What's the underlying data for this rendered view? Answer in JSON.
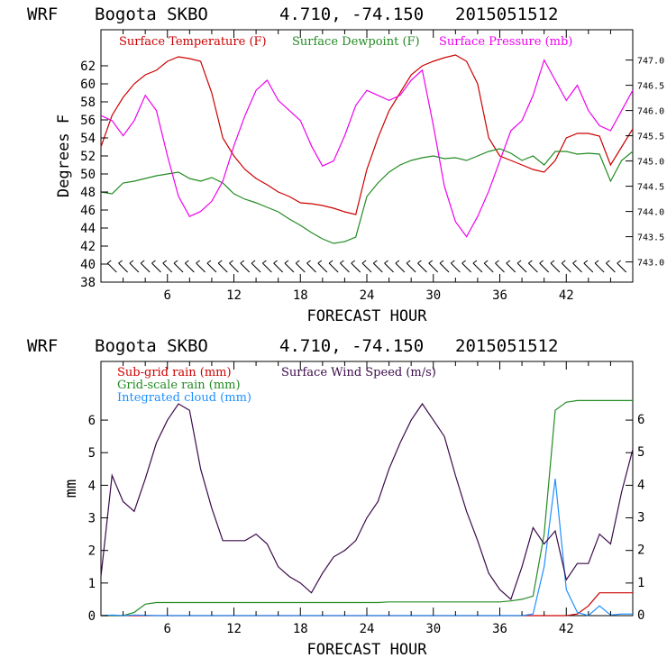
{
  "chart_data": [
    {
      "type": "line",
      "header": {
        "model": "WRF",
        "station": "Bogota SKBO",
        "coords": "4.710, -74.150",
        "init": "2015051512"
      },
      "xlabel": "FORECAST HOUR",
      "ylabel": "Degrees F",
      "xlim": [
        0,
        48
      ],
      "ylim": [
        38,
        66
      ],
      "y2lim": [
        742.6,
        747.6
      ],
      "xticks": [
        "6",
        "12",
        "18",
        "24",
        "30",
        "36",
        "42"
      ],
      "yticks": [
        "38",
        "40",
        "42",
        "44",
        "46",
        "48",
        "50",
        "52",
        "54",
        "56",
        "58",
        "60",
        "62"
      ],
      "y2ticks": [
        "743.0",
        "743.5",
        "744.0",
        "744.5",
        "745.0",
        "745.5",
        "746.0",
        "746.5",
        "747.0"
      ],
      "wind_barbs": "row of wind barbs along y=39.5",
      "series": [
        {
          "name": "Surface Temperature (F)",
          "color": "#cc0000",
          "axis": "left",
          "x": [
            0,
            1,
            2,
            3,
            4,
            5,
            6,
            7,
            8,
            9,
            10,
            11,
            12,
            13,
            14,
            15,
            16,
            17,
            18,
            19,
            20,
            21,
            22,
            23,
            24,
            25,
            26,
            27,
            28,
            29,
            30,
            31,
            32,
            33,
            34,
            35,
            36,
            37,
            38,
            39,
            40,
            41,
            42,
            43,
            44,
            45,
            46,
            47,
            48
          ],
          "values": [
            53,
            56.5,
            58.5,
            60,
            61,
            61.5,
            62.5,
            63,
            62.8,
            62.5,
            59,
            54,
            52,
            50.5,
            49.5,
            48.8,
            48,
            47.5,
            46.8,
            46.7,
            46.5,
            46.2,
            45.8,
            45.5,
            50.5,
            54,
            57,
            59,
            61,
            62,
            62.5,
            62.9,
            63.2,
            62.5,
            60,
            54,
            52,
            51.5,
            51,
            50.5,
            50.2,
            51.5,
            54,
            54.5,
            54.5,
            54.2,
            51,
            53,
            55
          ]
        },
        {
          "name": "Surface Dewpoint (F)",
          "color": "#228b22",
          "axis": "left",
          "x": [
            0,
            1,
            2,
            3,
            4,
            5,
            6,
            7,
            8,
            9,
            10,
            11,
            12,
            13,
            14,
            15,
            16,
            17,
            18,
            19,
            20,
            21,
            22,
            23,
            24,
            25,
            26,
            27,
            28,
            29,
            30,
            31,
            32,
            33,
            34,
            35,
            36,
            37,
            38,
            39,
            40,
            41,
            42,
            43,
            44,
            45,
            46,
            47,
            48
          ],
          "values": [
            48,
            47.8,
            49,
            49.2,
            49.5,
            49.8,
            50,
            50.2,
            49.5,
            49.2,
            49.6,
            49,
            47.8,
            47.2,
            46.8,
            46.3,
            45.8,
            45,
            44.3,
            43.5,
            42.8,
            42.3,
            42.5,
            43,
            47.5,
            49,
            50.2,
            51,
            51.5,
            51.8,
            52,
            51.7,
            51.8,
            51.5,
            52,
            52.5,
            52.8,
            52.3,
            51.5,
            52,
            51,
            52.5,
            52.5,
            52.2,
            52.3,
            52.2,
            49.2,
            51.5,
            52.5
          ]
        },
        {
          "name": "Surface Pressure (mb)",
          "color": "#ee00ee",
          "axis": "right",
          "x": [
            0,
            1,
            2,
            3,
            4,
            5,
            6,
            7,
            8,
            9,
            10,
            11,
            12,
            13,
            14,
            15,
            16,
            17,
            18,
            19,
            20,
            21,
            22,
            23,
            24,
            25,
            26,
            27,
            28,
            29,
            30,
            31,
            32,
            33,
            34,
            35,
            36,
            37,
            38,
            39,
            40,
            41,
            42,
            43,
            44,
            45,
            46,
            47,
            48
          ],
          "values": [
            745.9,
            745.8,
            745.5,
            745.8,
            746.3,
            746,
            745.1,
            744.3,
            743.9,
            744,
            744.2,
            744.6,
            745.3,
            745.9,
            746.4,
            746.6,
            746.2,
            746,
            745.8,
            745.3,
            744.9,
            745,
            745.5,
            746.1,
            746.4,
            746.3,
            746.2,
            746.3,
            746.6,
            746.8,
            745.7,
            744.5,
            743.8,
            743.5,
            743.9,
            744.4,
            745,
            745.6,
            745.8,
            746.3,
            747,
            746.6,
            746.2,
            746.5,
            746,
            745.7,
            745.6,
            746,
            746.4
          ]
        }
      ],
      "legend": [
        {
          "label": "Surface Temperature (F)",
          "color": "#cc0000"
        },
        {
          "label": "Surface Dewpoint (F)",
          "color": "#228b22"
        },
        {
          "label": "Surface Pressure (mb)",
          "color": "#ee00ee"
        }
      ]
    },
    {
      "type": "line",
      "header": {
        "model": "WRF",
        "station": "Bogota SKBO",
        "coords": "4.710, -74.150",
        "init": "2015051512"
      },
      "xlabel": "FORECAST HOUR",
      "ylabel": "mm",
      "xlim": [
        0,
        48
      ],
      "ylim": [
        0,
        7.8
      ],
      "y2lim": [
        0,
        7.8
      ],
      "xticks": [
        "6",
        "12",
        "18",
        "24",
        "30",
        "36",
        "42"
      ],
      "yticks": [
        "0",
        "1",
        "2",
        "3",
        "4",
        "5",
        "6"
      ],
      "y2ticks": [
        "0",
        "1",
        "2",
        "3",
        "4",
        "5",
        "6"
      ],
      "series": [
        {
          "name": "Sub-grid rain (mm)",
          "color": "#cc0000",
          "x": [
            0,
            41,
            42,
            43,
            44,
            45,
            46,
            47,
            48
          ],
          "values": [
            0,
            0,
            0,
            0.05,
            0.3,
            0.7,
            0.7,
            0.7,
            0.7
          ]
        },
        {
          "name": "Grid-scale rain (mm)",
          "color": "#228b22",
          "x": [
            0,
            1,
            2,
            3,
            4,
            5,
            6,
            7,
            8,
            9,
            10,
            11,
            12,
            13,
            14,
            15,
            16,
            17,
            18,
            19,
            20,
            21,
            22,
            23,
            24,
            25,
            26,
            27,
            28,
            29,
            30,
            31,
            32,
            33,
            34,
            35,
            36,
            37,
            38,
            39,
            40,
            41,
            42,
            43,
            44,
            45,
            46,
            47,
            48
          ],
          "values": [
            0,
            0,
            0,
            0.1,
            0.35,
            0.4,
            0.4,
            0.4,
            0.4,
            0.4,
            0.4,
            0.4,
            0.4,
            0.4,
            0.4,
            0.4,
            0.4,
            0.4,
            0.4,
            0.4,
            0.4,
            0.4,
            0.4,
            0.4,
            0.4,
            0.4,
            0.42,
            0.42,
            0.42,
            0.42,
            0.42,
            0.42,
            0.42,
            0.42,
            0.42,
            0.42,
            0.42,
            0.45,
            0.5,
            0.6,
            2.5,
            6.3,
            6.55,
            6.6,
            6.6,
            6.6,
            6.6,
            6.6,
            6.6
          ]
        },
        {
          "name": "Integrated cloud (mm)",
          "color": "#1e90ff",
          "x": [
            0,
            1,
            2,
            3,
            4,
            5,
            6,
            7,
            8,
            9,
            10,
            11,
            12,
            13,
            14,
            15,
            16,
            17,
            18,
            19,
            20,
            21,
            22,
            23,
            24,
            25,
            26,
            27,
            28,
            29,
            30,
            31,
            32,
            33,
            34,
            35,
            36,
            37,
            38,
            39,
            40,
            41,
            42,
            43,
            44,
            45,
            46,
            47,
            48
          ],
          "values": [
            0,
            0.02,
            0,
            0.02,
            0.01,
            0,
            0,
            0,
            0,
            0,
            0,
            0,
            0,
            0,
            0,
            0,
            0,
            0,
            0,
            0,
            0,
            0,
            0,
            0,
            0,
            0,
            0,
            0,
            0,
            0,
            0,
            0,
            0,
            0,
            0,
            0,
            0,
            0,
            0,
            0.05,
            1.5,
            4.2,
            0.8,
            0.1,
            0,
            0.3,
            0.02,
            0.05,
            0.05
          ]
        },
        {
          "name": "Surface Wind Speed (m/s)",
          "color": "#3a0a4a",
          "x": [
            0,
            1,
            2,
            3,
            4,
            5,
            6,
            7,
            8,
            9,
            10,
            11,
            12,
            13,
            14,
            15,
            16,
            17,
            18,
            19,
            20,
            21,
            22,
            23,
            24,
            25,
            26,
            27,
            28,
            29,
            30,
            31,
            32,
            33,
            34,
            35,
            36,
            37,
            38,
            39,
            40,
            41,
            42,
            43,
            44,
            45,
            46,
            47,
            48
          ],
          "values": [
            1.2,
            4.3,
            3.5,
            3.2,
            4.2,
            5.3,
            6,
            6.5,
            6.3,
            4.5,
            3.3,
            2.3,
            2.3,
            2.3,
            2.5,
            2.2,
            1.5,
            1.2,
            1.0,
            0.7,
            1.3,
            1.8,
            2.0,
            2.3,
            3.0,
            3.5,
            4.5,
            5.3,
            6.0,
            6.5,
            6.0,
            5.5,
            4.3,
            3.2,
            2.3,
            1.3,
            0.8,
            0.5,
            1.5,
            2.7,
            2.2,
            2.6,
            1.1,
            1.6,
            1.6,
            2.5,
            2.2,
            3.8,
            5.1
          ]
        }
      ],
      "legend": [
        {
          "label": "Sub-grid rain (mm)",
          "color": "#cc0000"
        },
        {
          "label": "Surface Wind Speed (m/s)",
          "color": "#3a0a4a"
        },
        {
          "label": "Grid-scale rain (mm)",
          "color": "#228b22"
        },
        {
          "label": "Integrated cloud (mm)",
          "color": "#1e90ff"
        }
      ]
    }
  ]
}
